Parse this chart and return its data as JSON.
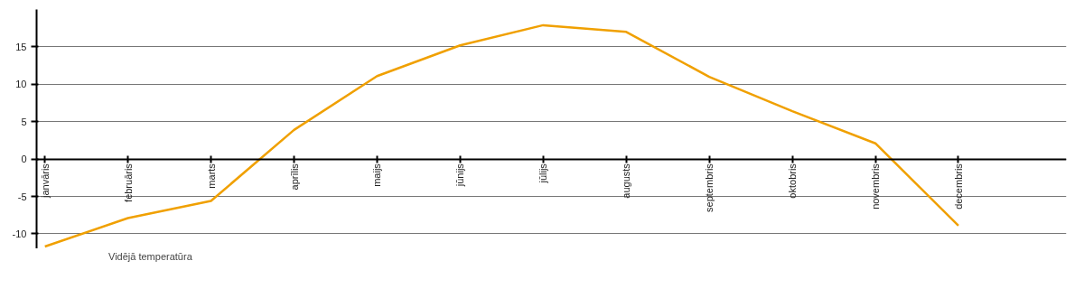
{
  "chart_data": {
    "type": "line",
    "categories": [
      "janvāris",
      "februāris",
      "marts",
      "aprīlis",
      "maijs",
      "jūnijs",
      "jūlijs",
      "augusts",
      "septembris",
      "oktobris",
      "novembris",
      "decembris"
    ],
    "series": [
      {
        "name": "Vidējā temperatūra",
        "color": "#f0a000",
        "values": [
          -11.7,
          -7.9,
          -5.6,
          3.9,
          11.1,
          15.2,
          17.9,
          17.0,
          11.0,
          6.4,
          2.1,
          -8.9
        ]
      }
    ],
    "ylim": [
      -12,
      20
    ],
    "yticks": [
      -10,
      -5,
      0,
      5,
      10,
      15
    ],
    "grid": "y",
    "legend": "bottom left",
    "marker": "none",
    "line_style": "solid"
  }
}
